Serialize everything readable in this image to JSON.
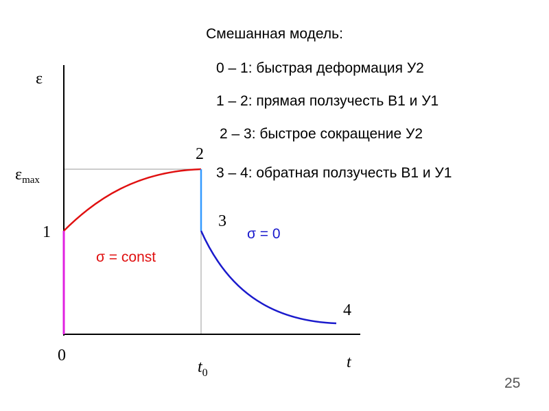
{
  "title": "Смешанная модель:",
  "stages": [
    "0 – 1: быстрая деформация У2",
    "1 – 2: прямая ползучесть В1 и У1",
    "2 – 3: быстрое сокращение У2",
    "3 – 4: обратная ползучесть В1 и У1"
  ],
  "axis": {
    "y_label": "ε",
    "y_max_symbol": "ε",
    "y_max_sub": "max",
    "origin": "0",
    "x_label": "t",
    "x_mark_symbol": "t",
    "x_mark_sub": "0"
  },
  "points": [
    "1",
    "2",
    "3",
    "4"
  ],
  "annotations": {
    "loading": "σ = const",
    "unloading": "σ = 0"
  },
  "page_number": "25"
}
